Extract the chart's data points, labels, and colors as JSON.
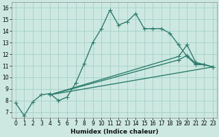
{
  "xlabel": "Humidex (Indice chaleur)",
  "bg_color": "#cce8e0",
  "grid_color": "#99ccc0",
  "line_color": "#2d7d6e",
  "xlim": [
    -0.5,
    23.5
  ],
  "ylim": [
    6.5,
    16.5
  ],
  "xticks": [
    0,
    1,
    2,
    3,
    4,
    5,
    6,
    7,
    8,
    9,
    10,
    11,
    12,
    13,
    14,
    15,
    16,
    17,
    18,
    19,
    20,
    21,
    22,
    23
  ],
  "yticks": [
    7,
    8,
    9,
    10,
    11,
    12,
    13,
    14,
    15,
    16
  ],
  "series": [
    {
      "x": [
        0,
        1,
        2,
        3,
        4,
        5,
        6,
        7,
        8,
        9,
        10,
        11,
        12,
        13,
        14,
        15,
        16,
        17,
        18,
        19,
        20,
        21,
        22,
        23
      ],
      "y": [
        7.8,
        6.7,
        7.9,
        8.5,
        8.6,
        8.0,
        8.3,
        9.5,
        11.2,
        13.0,
        14.2,
        15.8,
        14.5,
        14.8,
        15.5,
        14.2,
        14.2,
        14.2,
        13.8,
        12.8,
        11.8,
        11.1,
        11.1,
        10.9
      ]
    },
    {
      "x": [
        4,
        23
      ],
      "y": [
        8.5,
        10.9
      ],
      "no_marker": true
    },
    {
      "x": [
        4,
        19,
        20,
        21,
        22,
        23
      ],
      "y": [
        8.5,
        11.5,
        11.9,
        11.2,
        11.1,
        10.9
      ]
    },
    {
      "x": [
        4,
        19,
        20,
        21,
        22,
        23
      ],
      "y": [
        8.5,
        11.8,
        12.8,
        11.3,
        11.1,
        10.9
      ]
    }
  ]
}
